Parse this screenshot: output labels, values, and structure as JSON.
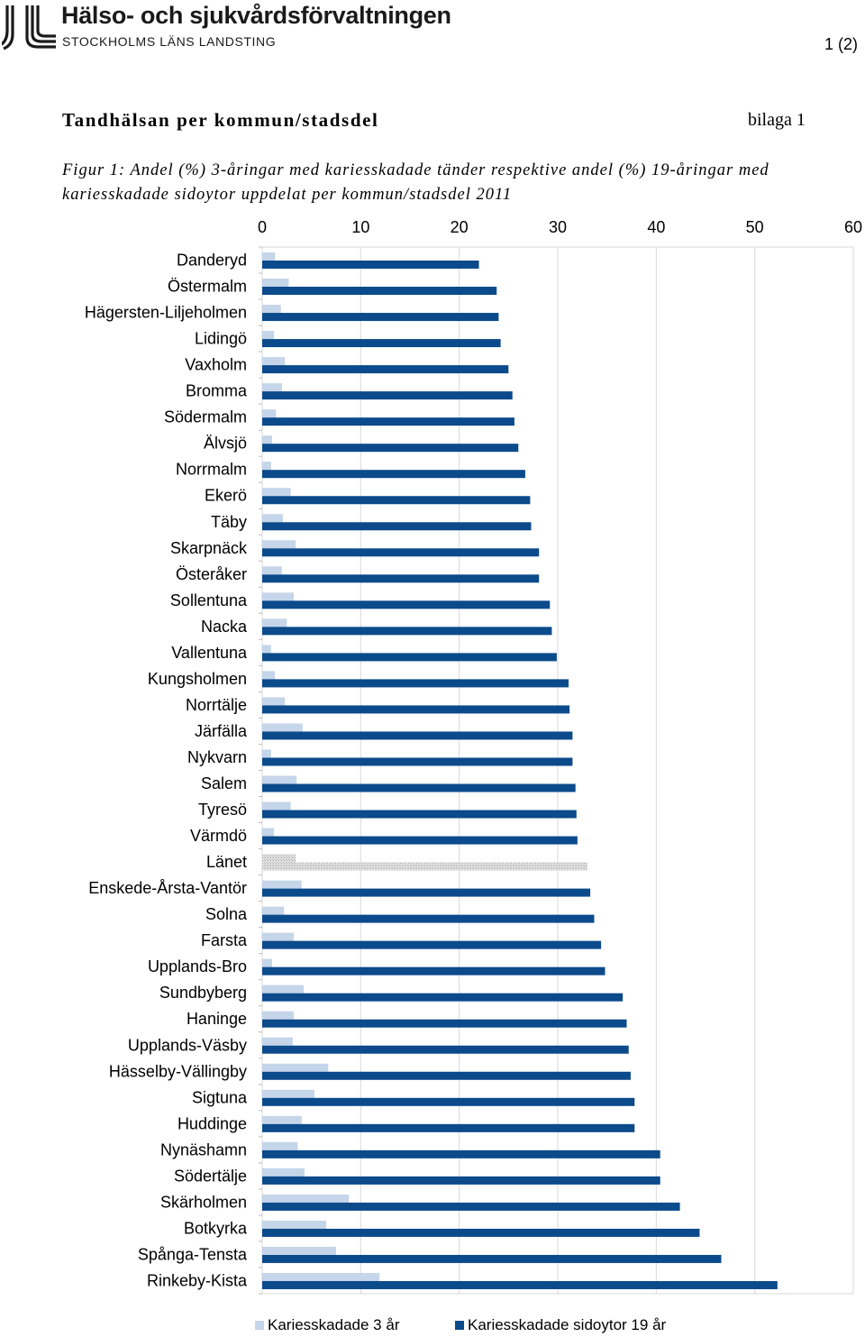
{
  "header": {
    "org_name": "Hälso- och sjukvårdsförvaltningen",
    "org_sub": "STOCKHOLMS LÄNS LANDSTING",
    "page_number": "1 (2)",
    "logo_icon": "sll-logo-icon"
  },
  "document": {
    "title": "Tandhälsan per kommun/stadsdel",
    "appendix": "bilaga 1",
    "caption": "Figur 1: Andel (%) 3-åringar med kariesskadade tänder respektive andel (%) 19-åringar med kariesskadade sidoytor uppdelat per kommun/stadsdel 2011"
  },
  "colors": {
    "series_3ar": "#c5d5ea",
    "series_19ar": "#0b4a8b",
    "lanet": "#c9c9c9",
    "grid": "#d9d9d9"
  },
  "chart_data": {
    "type": "bar",
    "orientation": "horizontal",
    "x_ticks": [
      0,
      10,
      20,
      30,
      40,
      50,
      60
    ],
    "xlim": [
      0,
      60
    ],
    "grid": true,
    "legend_position": "bottom",
    "highlight_category": "Länet",
    "categories": [
      "Danderyd",
      "Östermalm",
      "Hägersten-Liljeholmen",
      "Lidingö",
      "Vaxholm",
      "Bromma",
      "Södermalm",
      "Älvsjö",
      "Norrmalm",
      "Ekerö",
      "Täby",
      "Skarpnäck",
      "Österåker",
      "Sollentuna",
      "Nacka",
      "Vallentuna",
      "Kungsholmen",
      "Norrtälje",
      "Järfälla",
      "Nykvarn",
      "Salem",
      "Tyresö",
      "Värmdö",
      "Länet",
      "Enskede-Årsta-Vantör",
      "Solna",
      "Farsta",
      "Upplands-Bro",
      "Sundbyberg",
      "Haninge",
      "Upplands-Väsby",
      "Hässelby-Vällingby",
      "Sigtuna",
      "Huddinge",
      "Nynäshamn",
      "Södertälje",
      "Skärholmen",
      "Botkyrka",
      "Spånga-Tensta",
      "Rinkeby-Kista"
    ],
    "series": [
      {
        "name": "Kariesskadade 3 år",
        "values": [
          1.3,
          2.7,
          1.9,
          1.2,
          2.3,
          2.0,
          1.4,
          1.0,
          0.9,
          2.9,
          2.1,
          3.4,
          2.0,
          3.2,
          2.5,
          0.9,
          1.3,
          2.3,
          4.1,
          0.9,
          3.5,
          2.9,
          1.2,
          3.4,
          4.0,
          2.2,
          3.2,
          1.0,
          4.2,
          3.2,
          3.1,
          6.7,
          5.3,
          4.0,
          3.6,
          4.3,
          8.8,
          6.5,
          7.5,
          11.9
        ]
      },
      {
        "name": "Kariesskadade sidoytor 19 år",
        "values": [
          22.0,
          23.8,
          24.0,
          24.2,
          25.0,
          25.4,
          25.6,
          26.0,
          26.7,
          27.2,
          27.3,
          28.1,
          28.1,
          29.2,
          29.4,
          29.9,
          31.1,
          31.2,
          31.5,
          31.5,
          31.8,
          31.9,
          32.0,
          33.0,
          33.3,
          33.7,
          34.4,
          34.8,
          36.6,
          37.0,
          37.2,
          37.4,
          37.8,
          37.8,
          40.4,
          40.4,
          42.4,
          44.4,
          46.6,
          52.3
        ]
      }
    ]
  }
}
